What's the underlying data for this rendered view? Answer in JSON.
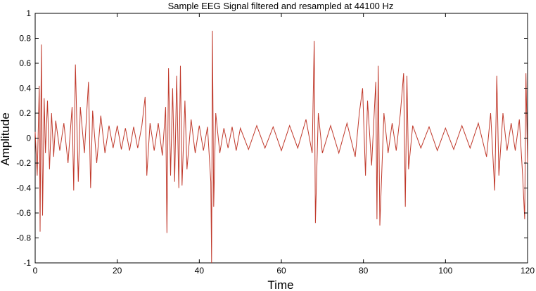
{
  "chart_data": {
    "type": "line",
    "title": "Sample EEG Signal filtered and resampled at 44100 Hz",
    "xlabel": "Time",
    "ylabel": "Amplitude",
    "xlim": [
      0,
      120
    ],
    "ylim": [
      -1,
      1
    ],
    "xticks": [
      0,
      20,
      40,
      60,
      80,
      100,
      120
    ],
    "yticks": [
      -1,
      -0.8,
      -0.6,
      -0.4,
      -0.2,
      0,
      0.2,
      0.4,
      0.6,
      0.8,
      1
    ],
    "xtick_labels": [
      "0",
      "20",
      "40",
      "60",
      "80",
      "100",
      "120"
    ],
    "ytick_labels": [
      "-1",
      "-0.8",
      "-0.6",
      "-0.4",
      "-0.2",
      "0",
      "0.2",
      "0.4",
      "0.6",
      "0.8",
      "1"
    ],
    "grid": false,
    "line_color": "#c0392b",
    "series": [
      {
        "x": [
          0,
          0.5,
          1,
          1.2,
          1.5,
          1.8,
          2.2,
          2.5,
          3,
          3.5,
          4,
          4.5,
          5,
          6,
          7,
          8,
          9,
          9.4,
          9.8,
          10.5,
          11,
          12,
          13,
          13.5,
          14,
          15,
          16,
          17,
          18,
          19,
          20,
          21,
          22,
          23,
          24,
          25,
          26,
          26.8,
          27.2,
          28,
          29,
          30,
          31,
          31.8,
          32.1,
          32.5,
          33,
          33.5,
          34,
          34.5,
          35,
          35.4,
          35.8,
          36.5,
          37,
          38,
          39,
          40,
          41,
          42,
          42.8,
          43,
          43.2,
          43.5,
          44,
          45,
          46,
          47,
          48,
          49,
          50,
          52,
          54,
          56,
          58,
          60,
          62,
          64,
          66,
          67.5,
          68,
          68.3,
          69,
          70,
          72,
          74,
          76,
          78,
          79,
          79.8,
          80.5,
          81,
          82,
          83,
          83.3,
          83.6,
          84,
          85,
          86,
          87,
          88,
          89,
          89.8,
          90.2,
          90.6,
          91,
          92,
          94,
          96,
          98,
          100,
          102,
          104,
          106,
          108,
          110,
          111,
          112,
          112.5,
          113,
          114,
          115,
          116,
          117,
          118,
          118.8,
          119.3,
          119.6,
          120
        ],
        "y": [
          0.05,
          -0.3,
          0.42,
          -0.75,
          0.75,
          -0.62,
          0.32,
          -0.12,
          0.3,
          -0.25,
          0.2,
          -0.15,
          0.14,
          -0.1,
          0.12,
          -0.2,
          0.25,
          -0.42,
          0.59,
          -0.35,
          0.25,
          -0.12,
          0.45,
          -0.4,
          0.22,
          -0.2,
          0.18,
          -0.12,
          0.1,
          -0.08,
          0.1,
          -0.09,
          0.08,
          -0.1,
          0.09,
          -0.08,
          0.1,
          0.33,
          -0.3,
          0.12,
          -0.1,
          0.12,
          -0.14,
          0.25,
          -0.76,
          0.56,
          -0.3,
          0.4,
          -0.35,
          0.5,
          -0.4,
          0.58,
          -0.38,
          0.3,
          -0.25,
          0.15,
          -0.12,
          0.1,
          -0.1,
          0.09,
          -0.35,
          -1.0,
          0.86,
          -0.55,
          0.2,
          -0.12,
          0.08,
          -0.08,
          0.09,
          -0.1,
          0.08,
          -0.09,
          0.1,
          -0.08,
          0.09,
          -0.1,
          0.1,
          -0.08,
          0.15,
          -0.12,
          0.78,
          -0.68,
          0.2,
          -0.12,
          0.1,
          -0.12,
          0.12,
          -0.15,
          0.2,
          0.4,
          -0.3,
          0.3,
          -0.22,
          0.45,
          -0.65,
          0.58,
          -0.7,
          0.2,
          -0.12,
          0.12,
          -0.1,
          0.2,
          0.52,
          -0.55,
          0.5,
          -0.25,
          0.1,
          -0.08,
          0.09,
          -0.1,
          0.08,
          -0.09,
          0.1,
          -0.08,
          0.12,
          -0.15,
          0.2,
          -0.42,
          0.5,
          -0.3,
          0.2,
          -0.1,
          0.12,
          -0.1,
          0.15,
          -0.3,
          -0.65,
          0.52,
          -0.2
        ]
      }
    ]
  }
}
